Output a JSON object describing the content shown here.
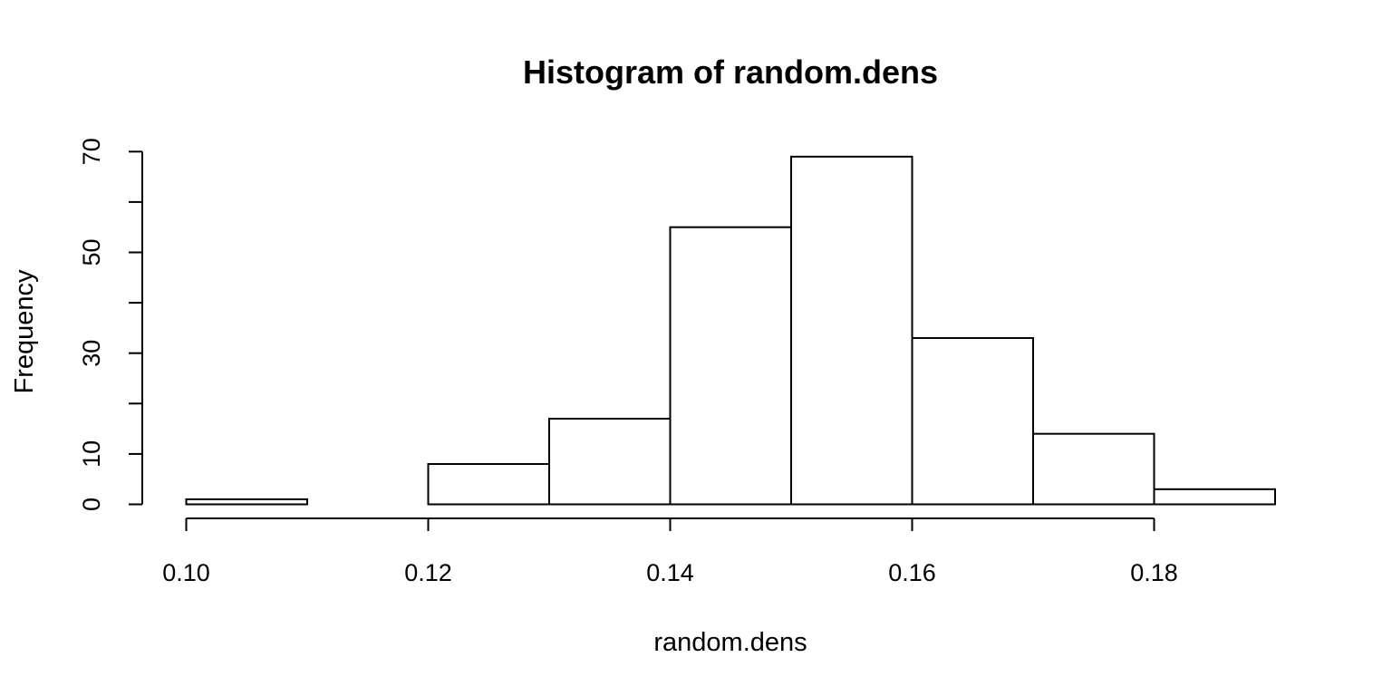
{
  "chart_data": {
    "type": "bar",
    "title": "Histogram of random.dens",
    "xlabel": "random.dens",
    "ylabel": "Frequency",
    "bins": [
      {
        "from": 0.1,
        "to": 0.11,
        "count": 1
      },
      {
        "from": 0.11,
        "to": 0.12,
        "count": 0
      },
      {
        "from": 0.12,
        "to": 0.13,
        "count": 8
      },
      {
        "from": 0.13,
        "to": 0.14,
        "count": 17
      },
      {
        "from": 0.14,
        "to": 0.15,
        "count": 55
      },
      {
        "from": 0.15,
        "to": 0.16,
        "count": 69
      },
      {
        "from": 0.16,
        "to": 0.17,
        "count": 33
      },
      {
        "from": 0.17,
        "to": 0.18,
        "count": 14
      },
      {
        "from": 0.18,
        "to": 0.19,
        "count": 3
      }
    ],
    "xlim": [
      0.1,
      0.19
    ],
    "ylim": [
      0,
      70
    ],
    "x_ticks": [
      "0.10",
      "0.12",
      "0.14",
      "0.16",
      "0.18"
    ],
    "y_ticks": [
      0,
      10,
      20,
      30,
      40,
      50,
      60,
      70
    ],
    "y_tick_labels": [
      "0",
      "10",
      "30",
      "50",
      "70"
    ],
    "grid": false,
    "bar_fill": "#ffffff",
    "bar_stroke": "#000000"
  }
}
